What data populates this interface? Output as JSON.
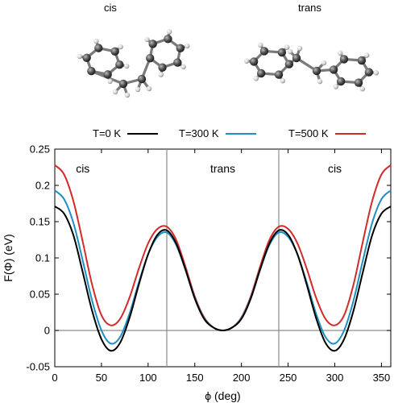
{
  "molecules": {
    "left": {
      "label": "cis"
    },
    "right": {
      "label": "trans"
    }
  },
  "chart_data": {
    "type": "line",
    "xlabel": "ϕ (deg)",
    "ylabel": "F(Φ) (eV)",
    "xlim": [
      0,
      360
    ],
    "ylim": [
      -0.05,
      0.25
    ],
    "xticks": [
      0,
      50,
      100,
      150,
      200,
      250,
      300,
      350
    ],
    "yticks": [
      -0.05,
      0,
      0.05,
      0.1,
      0.15,
      0.2,
      0.25
    ],
    "ytick_labels": [
      "-0.05",
      "0",
      "0.05",
      "0.1",
      "0.15",
      "0.2",
      "0.25"
    ],
    "legend_position": "top",
    "grid": false,
    "vlines": [
      120,
      240
    ],
    "hlines": [
      0
    ],
    "regions": [
      {
        "label": "cis",
        "x": 30
      },
      {
        "label": "trans",
        "x": 180
      },
      {
        "label": "cis",
        "x": 300
      }
    ],
    "series": [
      {
        "name": "T=0 K",
        "color": "#000000",
        "x": [
          0,
          10,
          20,
          30,
          40,
          50,
          60,
          70,
          80,
          90,
          100,
          110,
          120,
          130,
          140,
          150,
          160,
          170,
          180,
          190,
          200,
          210,
          220,
          230,
          240,
          250,
          260,
          270,
          280,
          290,
          300,
          310,
          320,
          330,
          340,
          350,
          360
        ],
        "values": [
          0.171,
          0.161,
          0.131,
          0.08,
          0.027,
          -0.012,
          -0.028,
          -0.017,
          0.017,
          0.063,
          0.105,
          0.132,
          0.138,
          0.12,
          0.084,
          0.044,
          0.016,
          0.004,
          0.0,
          0.004,
          0.016,
          0.044,
          0.084,
          0.12,
          0.138,
          0.132,
          0.105,
          0.063,
          0.017,
          -0.017,
          -0.028,
          -0.012,
          0.027,
          0.08,
          0.131,
          0.161,
          0.171
        ]
      },
      {
        "name": "T=300 K",
        "color": "#1f8fbf",
        "x": [
          0,
          10,
          20,
          30,
          40,
          50,
          60,
          70,
          80,
          90,
          100,
          110,
          120,
          130,
          140,
          150,
          160,
          170,
          180,
          190,
          200,
          210,
          220,
          230,
          240,
          250,
          260,
          270,
          280,
          290,
          300,
          310,
          320,
          330,
          340,
          350,
          360
        ],
        "values": [
          0.193,
          0.181,
          0.148,
          0.096,
          0.041,
          0.0,
          -0.018,
          -0.009,
          0.023,
          0.066,
          0.105,
          0.129,
          0.135,
          0.118,
          0.084,
          0.045,
          0.017,
          0.004,
          0.0,
          0.004,
          0.017,
          0.045,
          0.084,
          0.118,
          0.135,
          0.129,
          0.105,
          0.066,
          0.023,
          -0.009,
          -0.018,
          0.0,
          0.041,
          0.096,
          0.148,
          0.181,
          0.193
        ]
      },
      {
        "name": "T=500 K",
        "color": "#d42a2a",
        "x": [
          0,
          10,
          20,
          30,
          40,
          50,
          60,
          70,
          80,
          90,
          100,
          110,
          120,
          130,
          140,
          150,
          160,
          170,
          180,
          190,
          200,
          210,
          220,
          230,
          240,
          250,
          260,
          270,
          280,
          290,
          300,
          310,
          320,
          330,
          340,
          350,
          360
        ],
        "values": [
          0.228,
          0.215,
          0.178,
          0.122,
          0.063,
          0.021,
          0.007,
          0.016,
          0.045,
          0.085,
          0.12,
          0.14,
          0.143,
          0.125,
          0.088,
          0.047,
          0.018,
          0.004,
          0.0,
          0.004,
          0.018,
          0.047,
          0.088,
          0.125,
          0.143,
          0.14,
          0.12,
          0.085,
          0.045,
          0.016,
          0.007,
          0.021,
          0.063,
          0.122,
          0.178,
          0.215,
          0.228
        ]
      }
    ]
  }
}
